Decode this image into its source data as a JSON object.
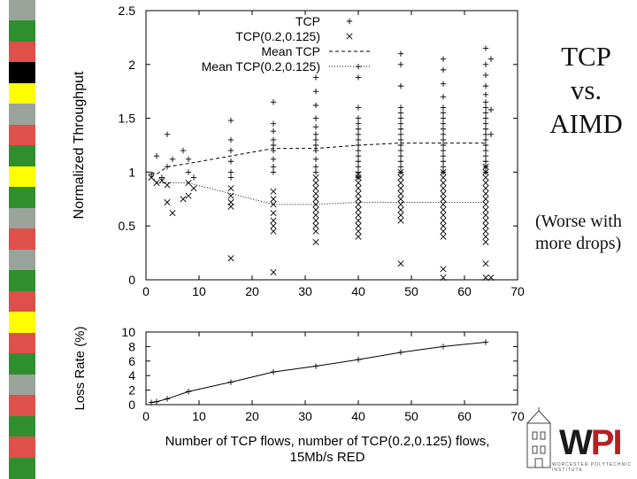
{
  "slide": {
    "title": "TCP vs. AIMD",
    "title_lines": [
      "TCP",
      "vs.",
      "AIMD"
    ],
    "note": "(Worse with more drops)",
    "logo_text": "WPI",
    "logo_subtext": "WORCESTER POLYTECHNIC INSTITUTE",
    "stripe_colors": [
      "#9aa39a",
      "#2f8f2f",
      "#e0504a",
      "#000000",
      "#ffff00",
      "#9aa39a",
      "#e0504a",
      "#2f8f2f",
      "#ffff00",
      "#2f8f2f",
      "#9aa39a",
      "#e0504a",
      "#9aa39a",
      "#2f8f2f",
      "#e0504a",
      "#ffff00",
      "#e0504a",
      "#2f8f2f",
      "#9aa39a",
      "#e0504a",
      "#2f8f2f",
      "#e0504a",
      "#2f8f2f"
    ],
    "logo_colors": {
      "W": "#1a1a1a",
      "PI": "#b22222"
    }
  },
  "chart_data": [
    {
      "type": "scatter",
      "title": "",
      "xlabel": "",
      "ylabel": "Normalized Throughput",
      "xlim": [
        0,
        70
      ],
      "ylim": [
        0,
        2.5
      ],
      "xticks": [
        "0",
        "10",
        "20",
        "30",
        "40",
        "50",
        "60",
        "70"
      ],
      "yticks": [
        "0",
        "0.5",
        "1",
        "1.5",
        "2",
        "2.5"
      ],
      "legend_position": "top-right",
      "grid": false,
      "series": [
        {
          "name": "TCP",
          "marker": "plus",
          "points": [
            [
              1,
              0.98
            ],
            [
              2,
              1.15
            ],
            [
              3,
              0.95
            ],
            [
              4,
              1.35
            ],
            [
              4,
              1.05
            ],
            [
              5,
              1.12
            ],
            [
              7,
              1.2
            ],
            [
              8,
              1.12
            ],
            [
              8,
              1.0
            ],
            [
              9,
              0.95
            ],
            [
              16,
              1.48
            ],
            [
              16,
              1.3
            ],
            [
              16,
              1.2
            ],
            [
              16,
              1.1
            ],
            [
              16,
              1.0
            ],
            [
              16,
              0.95
            ],
            [
              24,
              1.65
            ],
            [
              24,
              1.45
            ],
            [
              24,
              1.38
            ],
            [
              24,
              1.3
            ],
            [
              24,
              1.25
            ],
            [
              24,
              1.2
            ],
            [
              24,
              1.12
            ],
            [
              24,
              1.05
            ],
            [
              24,
              1.0
            ],
            [
              32,
              1.88
            ],
            [
              32,
              1.75
            ],
            [
              32,
              1.62
            ],
            [
              32,
              1.5
            ],
            [
              32,
              1.42
            ],
            [
              32,
              1.35
            ],
            [
              32,
              1.3
            ],
            [
              32,
              1.25
            ],
            [
              32,
              1.2
            ],
            [
              32,
              1.12
            ],
            [
              32,
              1.05
            ],
            [
              32,
              1.0
            ],
            [
              40,
              1.98
            ],
            [
              40,
              1.88
            ],
            [
              40,
              1.6
            ],
            [
              40,
              1.5
            ],
            [
              40,
              1.45
            ],
            [
              40,
              1.4
            ],
            [
              40,
              1.35
            ],
            [
              40,
              1.3
            ],
            [
              40,
              1.25
            ],
            [
              40,
              1.2
            ],
            [
              40,
              1.15
            ],
            [
              40,
              1.1
            ],
            [
              40,
              1.05
            ],
            [
              40,
              1.0
            ],
            [
              40,
              0.95
            ],
            [
              48,
              2.1
            ],
            [
              48,
              2.0
            ],
            [
              48,
              1.8
            ],
            [
              48,
              1.6
            ],
            [
              48,
              1.55
            ],
            [
              48,
              1.5
            ],
            [
              48,
              1.45
            ],
            [
              48,
              1.4
            ],
            [
              48,
              1.35
            ],
            [
              48,
              1.3
            ],
            [
              48,
              1.25
            ],
            [
              48,
              1.2
            ],
            [
              48,
              1.15
            ],
            [
              48,
              1.1
            ],
            [
              48,
              1.05
            ],
            [
              48,
              1.0
            ],
            [
              56,
              2.05
            ],
            [
              56,
              1.95
            ],
            [
              56,
              1.82
            ],
            [
              56,
              1.7
            ],
            [
              56,
              1.6
            ],
            [
              56,
              1.55
            ],
            [
              56,
              1.5
            ],
            [
              56,
              1.45
            ],
            [
              56,
              1.4
            ],
            [
              56,
              1.35
            ],
            [
              56,
              1.3
            ],
            [
              56,
              1.25
            ],
            [
              56,
              1.2
            ],
            [
              56,
              1.15
            ],
            [
              56,
              1.1
            ],
            [
              56,
              1.05
            ],
            [
              56,
              1.0
            ],
            [
              64,
              2.15
            ],
            [
              64,
              2.0
            ],
            [
              64,
              1.9
            ],
            [
              64,
              1.8
            ],
            [
              64,
              1.72
            ],
            [
              64,
              1.65
            ],
            [
              64,
              1.6
            ],
            [
              64,
              1.55
            ],
            [
              64,
              1.5
            ],
            [
              64,
              1.45
            ],
            [
              64,
              1.4
            ],
            [
              64,
              1.35
            ],
            [
              64,
              1.3
            ],
            [
              64,
              1.25
            ],
            [
              64,
              1.2
            ],
            [
              64,
              1.15
            ],
            [
              64,
              1.1
            ],
            [
              64,
              1.05
            ],
            [
              64,
              1.0
            ],
            [
              65,
              2.05
            ],
            [
              65,
              1.58
            ],
            [
              65,
              1.35
            ]
          ]
        },
        {
          "name": "TCP(0.2,0.125)",
          "marker": "x",
          "points": [
            [
              1,
              0.95
            ],
            [
              2,
              0.9
            ],
            [
              3,
              0.92
            ],
            [
              4,
              0.72
            ],
            [
              4,
              0.88
            ],
            [
              5,
              0.62
            ],
            [
              7,
              0.75
            ],
            [
              8,
              0.9
            ],
            [
              8,
              0.78
            ],
            [
              9,
              0.85
            ],
            [
              16,
              0.2
            ],
            [
              16,
              0.85
            ],
            [
              16,
              0.78
            ],
            [
              16,
              0.72
            ],
            [
              16,
              0.68
            ],
            [
              24,
              0.07
            ],
            [
              24,
              0.82
            ],
            [
              24,
              0.75
            ],
            [
              24,
              0.7
            ],
            [
              24,
              0.62
            ],
            [
              24,
              0.55
            ],
            [
              24,
              0.5
            ],
            [
              24,
              0.45
            ],
            [
              32,
              0.35
            ],
            [
              32,
              0.95
            ],
            [
              32,
              0.9
            ],
            [
              32,
              0.85
            ],
            [
              32,
              0.8
            ],
            [
              32,
              0.75
            ],
            [
              32,
              0.7
            ],
            [
              32,
              0.65
            ],
            [
              32,
              0.6
            ],
            [
              32,
              0.55
            ],
            [
              32,
              0.5
            ],
            [
              32,
              0.45
            ],
            [
              40,
              0.4
            ],
            [
              40,
              0.45
            ],
            [
              40,
              0.5
            ],
            [
              40,
              0.55
            ],
            [
              40,
              0.6
            ],
            [
              40,
              0.65
            ],
            [
              40,
              0.7
            ],
            [
              40,
              0.75
            ],
            [
              40,
              0.8
            ],
            [
              40,
              0.85
            ],
            [
              40,
              0.9
            ],
            [
              40,
              0.95
            ],
            [
              40,
              0.98
            ],
            [
              48,
              0.15
            ],
            [
              48,
              0.55
            ],
            [
              48,
              0.6
            ],
            [
              48,
              0.65
            ],
            [
              48,
              0.7
            ],
            [
              48,
              0.75
            ],
            [
              48,
              0.8
            ],
            [
              48,
              0.85
            ],
            [
              48,
              0.9
            ],
            [
              48,
              0.95
            ],
            [
              48,
              1.0
            ],
            [
              56,
              0.1
            ],
            [
              56,
              0.02
            ],
            [
              56,
              0.4
            ],
            [
              56,
              0.45
            ],
            [
              56,
              0.5
            ],
            [
              56,
              0.55
            ],
            [
              56,
              0.6
            ],
            [
              56,
              0.65
            ],
            [
              56,
              0.7
            ],
            [
              56,
              0.75
            ],
            [
              56,
              0.8
            ],
            [
              56,
              0.85
            ],
            [
              56,
              0.9
            ],
            [
              56,
              0.95
            ],
            [
              56,
              1.0
            ],
            [
              64,
              0.15
            ],
            [
              64,
              0.02
            ],
            [
              64,
              0.35
            ],
            [
              64,
              0.4
            ],
            [
              64,
              0.45
            ],
            [
              64,
              0.5
            ],
            [
              64,
              0.55
            ],
            [
              64,
              0.6
            ],
            [
              64,
              0.65
            ],
            [
              64,
              0.7
            ],
            [
              64,
              0.75
            ],
            [
              64,
              0.8
            ],
            [
              64,
              0.85
            ],
            [
              64,
              0.9
            ],
            [
              64,
              0.95
            ],
            [
              64,
              1.0
            ],
            [
              64,
              1.05
            ],
            [
              65,
              0.02
            ]
          ]
        },
        {
          "name": "Mean TCP",
          "line": "dashed",
          "points": [
            [
              1,
              1.0
            ],
            [
              2,
              0.98
            ],
            [
              4,
              1.05
            ],
            [
              8,
              1.08
            ],
            [
              16,
              1.15
            ],
            [
              24,
              1.22
            ],
            [
              32,
              1.22
            ],
            [
              40,
              1.25
            ],
            [
              48,
              1.27
            ],
            [
              56,
              1.27
            ],
            [
              64,
              1.27
            ]
          ]
        },
        {
          "name": "Mean TCP(0.2,0.125)",
          "line": "dotted",
          "points": [
            [
              1,
              0.98
            ],
            [
              2,
              0.9
            ],
            [
              4,
              0.9
            ],
            [
              8,
              0.9
            ],
            [
              16,
              0.8
            ],
            [
              24,
              0.7
            ],
            [
              32,
              0.7
            ],
            [
              40,
              0.72
            ],
            [
              48,
              0.72
            ],
            [
              56,
              0.72
            ],
            [
              64,
              0.72
            ]
          ]
        }
      ]
    },
    {
      "type": "line",
      "title": "",
      "xlabel": "Number of TCP flows, number of TCP(0.2,0.125) flows, 15Mb/s RED",
      "xlabel_lines": [
        "Number of TCP flows, number of TCP(0.2,0.125) flows,",
        "15Mb/s RED"
      ],
      "ylabel": "Loss Rate (%)",
      "xlim": [
        0,
        70
      ],
      "ylim": [
        0,
        10
      ],
      "xticks": [
        "0",
        "10",
        "20",
        "30",
        "40",
        "50",
        "60",
        "70"
      ],
      "yticks": [
        "0",
        "2",
        "4",
        "6",
        "8",
        "10"
      ],
      "grid": false,
      "series": [
        {
          "name": "",
          "marker": "plus",
          "points": [
            [
              1,
              0.3
            ],
            [
              2,
              0.4
            ],
            [
              4,
              0.8
            ],
            [
              8,
              1.8
            ],
            [
              16,
              3.1
            ],
            [
              24,
              4.5
            ],
            [
              32,
              5.3
            ],
            [
              40,
              6.2
            ],
            [
              48,
              7.2
            ],
            [
              56,
              8.0
            ],
            [
              64,
              8.6
            ]
          ]
        }
      ]
    }
  ]
}
